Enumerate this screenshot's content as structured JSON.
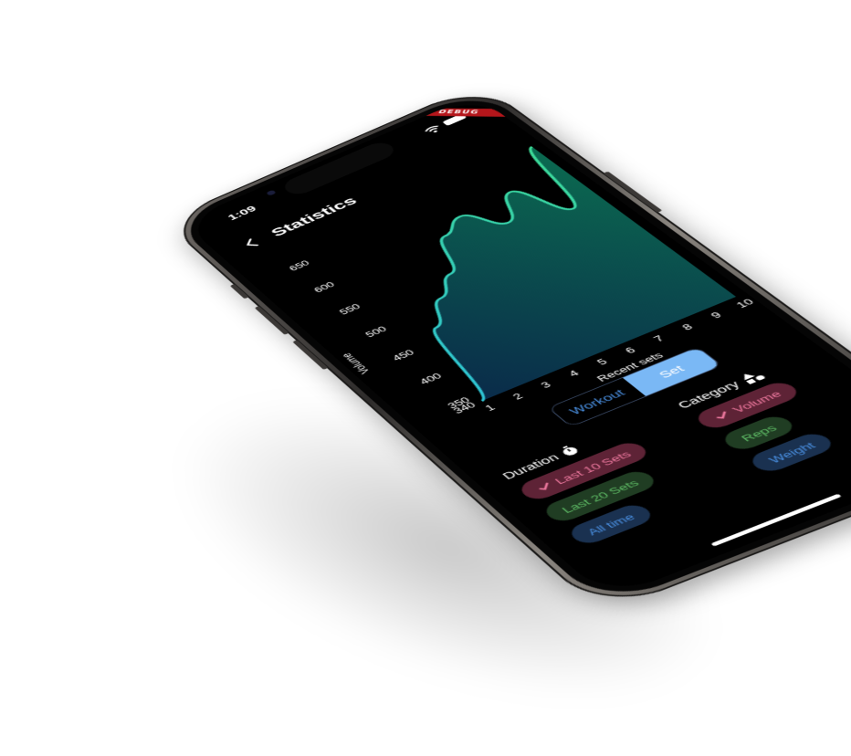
{
  "status": {
    "time": "1:09",
    "debug_banner": "DEBUG"
  },
  "header": {
    "title": "Statistics"
  },
  "chart_data": {
    "type": "area",
    "x": [
      1,
      2,
      3,
      4,
      5,
      6,
      7,
      8,
      9,
      10
    ],
    "values": [
      340,
      470,
      510,
      540,
      600,
      620,
      580,
      625,
      560,
      680
    ],
    "xlabel": "Recent sets",
    "ylabel": "Volume",
    "x_ticks": [
      "1",
      "2",
      "3",
      "4",
      "5",
      "6",
      "7",
      "8",
      "9",
      "10"
    ],
    "y_ticks": [
      "340",
      "350",
      "400",
      "450",
      "500",
      "550",
      "600",
      "650"
    ],
    "ylim": [
      340,
      680
    ],
    "xlim": [
      1,
      10
    ],
    "line_color": "#2ec4d6",
    "line_color_end": "#3ddc97",
    "fill_color": "#0a5a4a"
  },
  "mode_toggle": {
    "options": [
      "Workout",
      "Set"
    ],
    "selected": "Set"
  },
  "duration": {
    "label": "Duration",
    "icon": "stopwatch-icon",
    "chips": [
      {
        "label": "Last 10 Sets",
        "selected": true,
        "color": "#f07aa0"
      },
      {
        "label": "Last 20 Sets",
        "selected": false,
        "color": "#5fbd66"
      },
      {
        "label": "All time",
        "selected": false,
        "color": "#4a90e2"
      }
    ]
  },
  "category": {
    "label": "Category",
    "icon": "shapes-icon",
    "chips": [
      {
        "label": "Volume",
        "selected": true,
        "color": "#f07aa0"
      },
      {
        "label": "Reps",
        "selected": false,
        "color": "#5fbd66"
      },
      {
        "label": "Weight",
        "selected": false,
        "color": "#4a90e2"
      }
    ]
  }
}
